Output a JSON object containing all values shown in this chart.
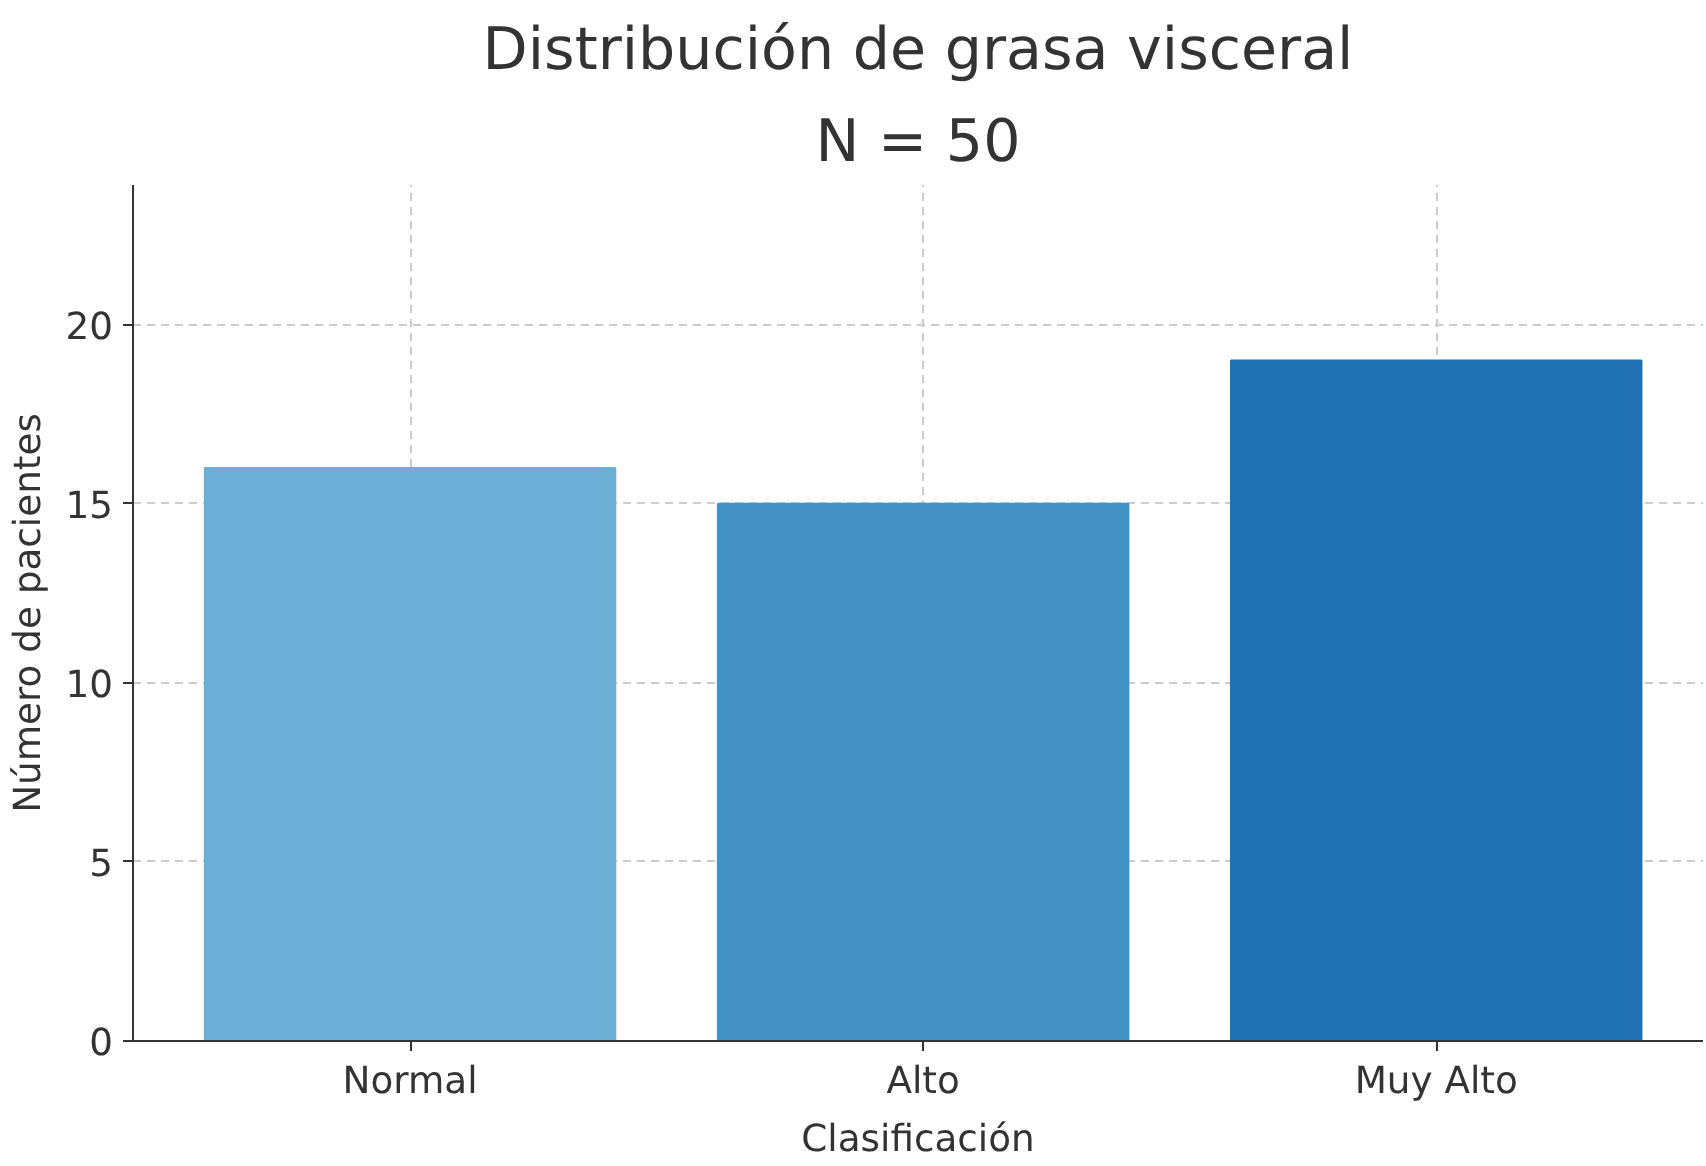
{
  "chart_data": {
    "type": "bar",
    "title": "Distribución de grasa visceral",
    "subtitle": "N = 50",
    "xlabel": "Clasificación",
    "ylabel": "Número de pacientes",
    "categories": [
      "Normal",
      "Alto",
      "Muy Alto"
    ],
    "values": [
      16,
      15,
      19
    ],
    "colors": [
      "#6baed6",
      "#4292c6",
      "#2171b5"
    ],
    "ylim": [
      0,
      23.9
    ],
    "yticks": [
      0,
      5,
      10,
      15,
      20
    ],
    "grid": true
  }
}
